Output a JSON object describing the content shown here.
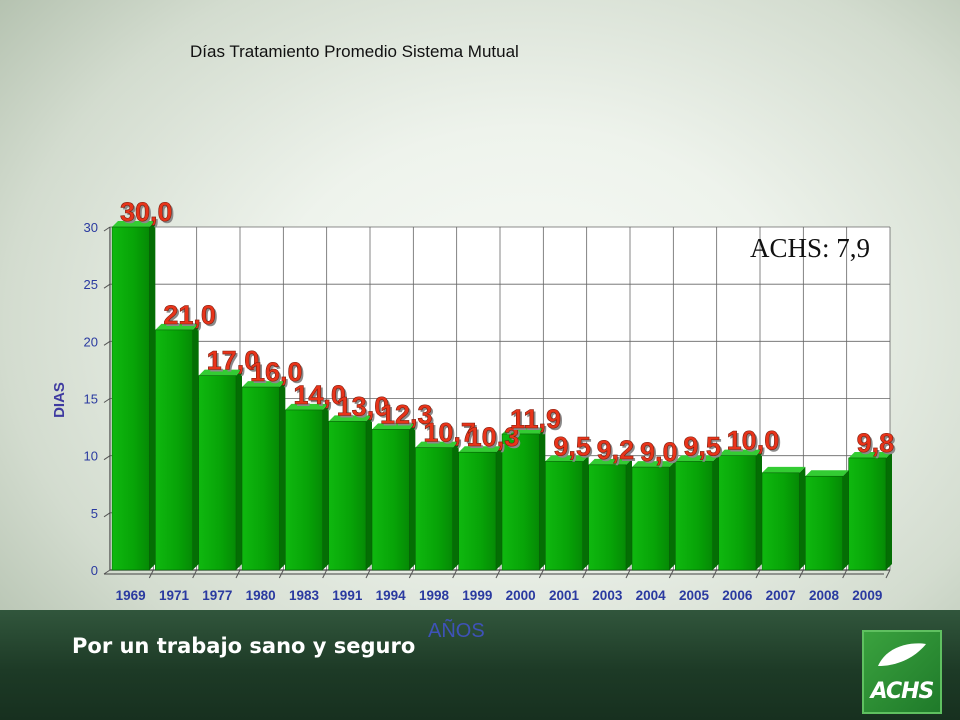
{
  "chart_data": {
    "type": "bar",
    "title": "Días Tratamiento Promedio Sistema Mutual",
    "xlabel": "AÑOS",
    "ylabel": "DIAS",
    "ylim": [
      0,
      30
    ],
    "yticks": [
      0,
      5,
      10,
      15,
      20,
      25,
      30
    ],
    "grid": true,
    "categories": [
      "1969",
      "1971",
      "1977",
      "1980",
      "1983",
      "1991",
      "1994",
      "1998",
      "1999",
      "2000",
      "2001",
      "2003",
      "2004",
      "2005",
      "2006",
      "2007",
      "2008",
      "2009"
    ],
    "values": [
      30.0,
      21.0,
      17.0,
      16.0,
      14.0,
      13.0,
      12.3,
      10.7,
      10.3,
      11.9,
      9.5,
      9.2,
      9.0,
      9.5,
      10.0,
      8.5,
      8.2,
      9.8
    ],
    "value_labels": [
      "30,0",
      "21,0",
      "17,0",
      "16,0",
      "14,0",
      "13,0",
      "12,3",
      "10,7",
      "10,3",
      "11,9",
      "9,5",
      "9,2",
      "9,0",
      "9,5",
      "10,0",
      "",
      "",
      "9,8"
    ],
    "bar_color": "#0aa80a",
    "label_color": "#e8341a",
    "annotation": "ACHS: 7,9"
  },
  "footer": {
    "slogan": "Por un trabajo sano y seguro",
    "logo_text": "ACHS"
  }
}
